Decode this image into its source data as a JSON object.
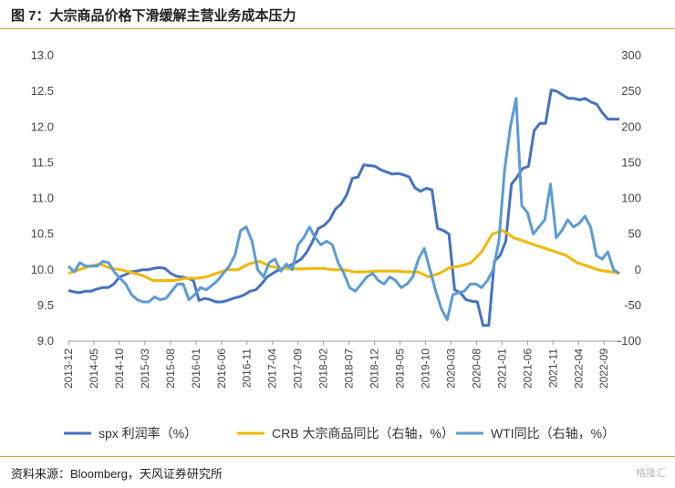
{
  "header": {
    "title": "图 7：大宗商品价格下滑缓解主营业务成本压力"
  },
  "footer": {
    "source": "资料来源：Bloomberg，天风证券研究所",
    "watermark": "格隆汇"
  },
  "chart_data": {
    "type": "line",
    "title": "大宗商品价格下滑缓解主营业务成本压力",
    "x": [
      "2013-12",
      "2014-05",
      "2014-10",
      "2015-03",
      "2015-08",
      "2016-01",
      "2016-06",
      "2016-11",
      "2017-04",
      "2017-09",
      "2018-02",
      "2018-07",
      "2018-12",
      "2019-05",
      "2019-10",
      "2020-03",
      "2020-08",
      "2021-01",
      "2021-06",
      "2021-11",
      "2022-04",
      "2022-09"
    ],
    "left_axis": {
      "ylim": [
        9.0,
        13.0
      ],
      "ticks": [
        "9.0",
        "9.5",
        "10.0",
        "10.5",
        "11.0",
        "11.5",
        "12.0",
        "12.5",
        "13.0"
      ]
    },
    "right_axis": {
      "ylim": [
        -100,
        300
      ],
      "ticks": [
        "-100",
        "-50",
        "0",
        "50",
        "100",
        "150",
        "200",
        "250",
        "300"
      ]
    },
    "legend_position": "bottom",
    "series": [
      {
        "name": "spx 利润率（%）",
        "axis": "left",
        "color": "#4472c4",
        "points": [
          [
            0,
            9.71
          ],
          [
            1,
            9.69
          ],
          [
            2,
            9.68
          ],
          [
            3,
            9.7
          ],
          [
            4,
            9.7
          ],
          [
            5,
            9.73
          ],
          [
            6,
            9.75
          ],
          [
            7,
            9.75
          ],
          [
            8,
            9.8
          ],
          [
            9,
            9.9
          ],
          [
            10,
            9.93
          ],
          [
            11,
            9.97
          ],
          [
            12,
            9.98
          ],
          [
            13,
            10.0
          ],
          [
            14,
            10.0
          ],
          [
            15,
            10.02
          ],
          [
            16,
            10.03
          ],
          [
            17,
            10.02
          ],
          [
            18,
            9.95
          ],
          [
            19,
            9.91
          ],
          [
            20,
            9.9
          ],
          [
            21,
            9.88
          ],
          [
            22,
            9.85
          ],
          [
            23,
            9.57
          ],
          [
            24,
            9.6
          ],
          [
            25,
            9.58
          ],
          [
            26,
            9.55
          ],
          [
            27,
            9.55
          ],
          [
            28,
            9.57
          ],
          [
            29,
            9.6
          ],
          [
            30,
            9.62
          ],
          [
            31,
            9.65
          ],
          [
            32,
            9.7
          ],
          [
            33,
            9.72
          ],
          [
            34,
            9.8
          ],
          [
            35,
            9.9
          ],
          [
            36,
            9.95
          ],
          [
            37,
            10.0
          ],
          [
            38,
            10.03
          ],
          [
            39,
            10.06
          ],
          [
            40,
            10.1
          ],
          [
            41,
            10.15
          ],
          [
            42,
            10.25
          ],
          [
            43,
            10.4
          ],
          [
            44,
            10.58
          ],
          [
            45,
            10.62
          ],
          [
            46,
            10.7
          ],
          [
            47,
            10.85
          ],
          [
            48,
            10.92
          ],
          [
            49,
            11.05
          ],
          [
            50,
            11.28
          ],
          [
            51,
            11.3
          ],
          [
            52,
            11.47
          ],
          [
            53,
            11.46
          ],
          [
            54,
            11.45
          ],
          [
            55,
            11.4
          ],
          [
            56,
            11.37
          ],
          [
            57,
            11.34
          ],
          [
            58,
            11.35
          ],
          [
            59,
            11.33
          ],
          [
            60,
            11.3
          ],
          [
            61,
            11.15
          ],
          [
            62,
            11.1
          ],
          [
            63,
            11.14
          ],
          [
            64,
            11.12
          ],
          [
            65,
            10.58
          ],
          [
            66,
            10.55
          ],
          [
            67,
            10.5
          ],
          [
            68,
            9.72
          ],
          [
            69,
            9.68
          ],
          [
            70,
            9.58
          ],
          [
            71,
            9.56
          ],
          [
            72,
            9.55
          ],
          [
            73,
            9.22
          ],
          [
            74,
            9.22
          ],
          [
            75,
            10.12
          ],
          [
            76,
            10.2
          ],
          [
            77,
            10.4
          ],
          [
            78,
            11.2
          ],
          [
            79,
            11.3
          ],
          [
            80,
            11.42
          ],
          [
            81,
            11.45
          ],
          [
            82,
            11.95
          ],
          [
            83,
            12.05
          ],
          [
            84,
            12.05
          ],
          [
            85,
            12.52
          ],
          [
            86,
            12.5
          ],
          [
            87,
            12.45
          ],
          [
            88,
            12.4
          ],
          [
            89,
            12.4
          ],
          [
            90,
            12.38
          ],
          [
            91,
            12.4
          ],
          [
            92,
            12.35
          ],
          [
            93,
            12.32
          ],
          [
            94,
            12.2
          ],
          [
            95,
            12.11
          ],
          [
            96,
            12.11
          ],
          [
            97,
            12.11
          ]
        ]
      },
      {
        "name": "CRB 大宗商品同比（右轴，%）",
        "axis": "right",
        "color": "#f2b705",
        "points": [
          [
            0,
            -5
          ],
          [
            3,
            0
          ],
          [
            6,
            5
          ],
          [
            9,
            8
          ],
          [
            12,
            2
          ],
          [
            15,
            0
          ],
          [
            18,
            -4
          ],
          [
            21,
            -8
          ],
          [
            24,
            -15
          ],
          [
            27,
            -15
          ],
          [
            30,
            -15
          ],
          [
            33,
            -12
          ],
          [
            36,
            -12
          ],
          [
            39,
            -10
          ],
          [
            42,
            -5
          ],
          [
            45,
            0
          ],
          [
            48,
            0
          ],
          [
            51,
            8
          ],
          [
            54,
            12
          ],
          [
            57,
            5
          ],
          [
            60,
            2
          ],
          [
            63,
            2
          ],
          [
            66,
            1
          ],
          [
            69,
            2
          ],
          [
            72,
            2
          ],
          [
            75,
            0
          ],
          [
            78,
            0
          ],
          [
            81,
            -3
          ],
          [
            84,
            -3
          ],
          [
            87,
            -2
          ],
          [
            90,
            -2
          ],
          [
            93,
            -2
          ],
          [
            96,
            -3
          ],
          [
            99,
            -3
          ],
          [
            102,
            -10
          ],
          [
            105,
            -5
          ],
          [
            108,
            3
          ],
          [
            111,
            5
          ],
          [
            114,
            10
          ],
          [
            117,
            25
          ],
          [
            120,
            50
          ],
          [
            123,
            55
          ],
          [
            126,
            45
          ],
          [
            129,
            40
          ],
          [
            132,
            35
          ],
          [
            135,
            30
          ],
          [
            138,
            25
          ],
          [
            141,
            20
          ],
          [
            144,
            10
          ],
          [
            147,
            5
          ],
          [
            150,
            0
          ],
          [
            152,
            -2
          ],
          [
            154,
            -3
          ],
          [
            156,
            -5
          ]
        ]
      },
      {
        "name": "WTI同比（右轴，%）",
        "axis": "right",
        "color": "#5b9bd5",
        "points": [
          [
            0,
            5
          ],
          [
            3,
            -3
          ],
          [
            6,
            10
          ],
          [
            9,
            5
          ],
          [
            12,
            5
          ],
          [
            15,
            5
          ],
          [
            18,
            12
          ],
          [
            21,
            10
          ],
          [
            24,
            -3
          ],
          [
            27,
            -12
          ],
          [
            30,
            -20
          ],
          [
            33,
            -35
          ],
          [
            36,
            -42
          ],
          [
            39,
            -45
          ],
          [
            42,
            -45
          ],
          [
            45,
            -38
          ],
          [
            48,
            -42
          ],
          [
            51,
            -40
          ],
          [
            54,
            -30
          ],
          [
            57,
            -20
          ],
          [
            60,
            -20
          ],
          [
            63,
            -42
          ],
          [
            66,
            -35
          ],
          [
            69,
            -25
          ],
          [
            72,
            -28
          ],
          [
            75,
            -22
          ],
          [
            78,
            -15
          ],
          [
            81,
            -5
          ],
          [
            84,
            5
          ],
          [
            87,
            20
          ],
          [
            90,
            55
          ],
          [
            93,
            60
          ],
          [
            96,
            40
          ],
          [
            99,
            0
          ],
          [
            102,
            -10
          ],
          [
            105,
            10
          ],
          [
            108,
            15
          ],
          [
            111,
            -2
          ],
          [
            114,
            8
          ],
          [
            117,
            0
          ],
          [
            120,
            35
          ],
          [
            123,
            45
          ],
          [
            126,
            60
          ],
          [
            129,
            45
          ],
          [
            132,
            35
          ],
          [
            135,
            40
          ],
          [
            138,
            35
          ],
          [
            141,
            10
          ],
          [
            144,
            -5
          ],
          [
            147,
            -25
          ],
          [
            150,
            -30
          ],
          [
            153,
            -20
          ],
          [
            156,
            -10
          ],
          [
            159,
            -5
          ],
          [
            162,
            -15
          ],
          [
            165,
            -20
          ],
          [
            168,
            -10
          ],
          [
            171,
            -15
          ],
          [
            174,
            -25
          ],
          [
            177,
            -20
          ],
          [
            180,
            -10
          ],
          [
            183,
            15
          ],
          [
            186,
            30
          ],
          [
            189,
            0
          ],
          [
            192,
            -30
          ],
          [
            195,
            -55
          ],
          [
            198,
            -70
          ],
          [
            201,
            -35
          ],
          [
            204,
            -32
          ],
          [
            207,
            -30
          ],
          [
            210,
            -20
          ],
          [
            213,
            -20
          ],
          [
            216,
            -25
          ],
          [
            219,
            -15
          ],
          [
            222,
            0
          ],
          [
            225,
            40
          ],
          [
            228,
            140
          ],
          [
            231,
            200
          ],
          [
            234,
            240
          ],
          [
            237,
            90
          ],
          [
            240,
            80
          ],
          [
            243,
            50
          ],
          [
            246,
            60
          ],
          [
            249,
            70
          ],
          [
            252,
            120
          ],
          [
            255,
            45
          ],
          [
            258,
            55
          ],
          [
            261,
            70
          ],
          [
            264,
            60
          ],
          [
            267,
            65
          ],
          [
            270,
            75
          ],
          [
            273,
            60
          ],
          [
            276,
            20
          ],
          [
            279,
            15
          ],
          [
            282,
            25
          ],
          [
            285,
            0
          ],
          [
            288,
            -5
          ]
        ]
      }
    ]
  }
}
